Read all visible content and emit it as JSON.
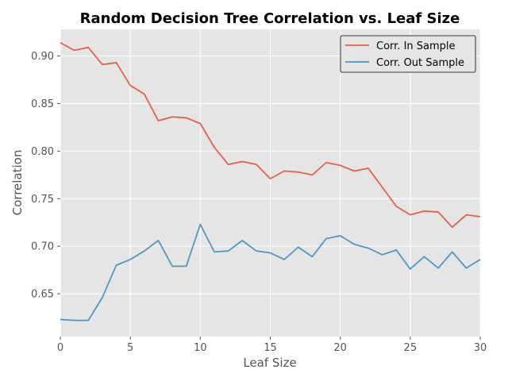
{
  "chart_data": {
    "type": "line",
    "title": "Random Decision Tree Correlation vs. Leaf Size",
    "xlabel": "Leaf Size",
    "ylabel": "Correlation",
    "xlim": [
      0,
      30
    ],
    "ylim": [
      0.605,
      0.928
    ],
    "xticks": [
      0,
      5,
      10,
      15,
      20,
      25,
      30
    ],
    "yticks": [
      0.65,
      0.7,
      0.75,
      0.8,
      0.85,
      0.9
    ],
    "grid": true,
    "legend_position": "top-right",
    "x": [
      0,
      1,
      2,
      3,
      4,
      5,
      6,
      7,
      8,
      9,
      10,
      11,
      12,
      13,
      14,
      15,
      16,
      17,
      18,
      19,
      20,
      21,
      22,
      23,
      24,
      25,
      26,
      27,
      28,
      29,
      30
    ],
    "series": [
      {
        "name": "Corr. In Sample",
        "color": "#e24a33",
        "values": [
          0.914,
          0.906,
          0.909,
          0.891,
          0.893,
          0.869,
          0.86,
          0.832,
          0.836,
          0.835,
          0.829,
          0.804,
          0.786,
          0.789,
          0.786,
          0.771,
          0.779,
          0.778,
          0.775,
          0.788,
          0.785,
          0.779,
          0.782,
          0.762,
          0.742,
          0.733,
          0.737,
          0.736,
          0.72,
          0.733,
          0.731
        ]
      },
      {
        "name": "Corr. Out Sample",
        "color": "#348abd",
        "values": [
          0.623,
          0.622,
          0.622,
          0.646,
          0.68,
          0.686,
          0.695,
          0.706,
          0.679,
          0.679,
          0.723,
          0.694,
          0.695,
          0.706,
          0.695,
          0.693,
          0.686,
          0.699,
          0.689,
          0.708,
          0.711,
          0.702,
          0.698,
          0.691,
          0.696,
          0.676,
          0.689,
          0.677,
          0.694,
          0.677,
          0.686
        ]
      }
    ]
  }
}
